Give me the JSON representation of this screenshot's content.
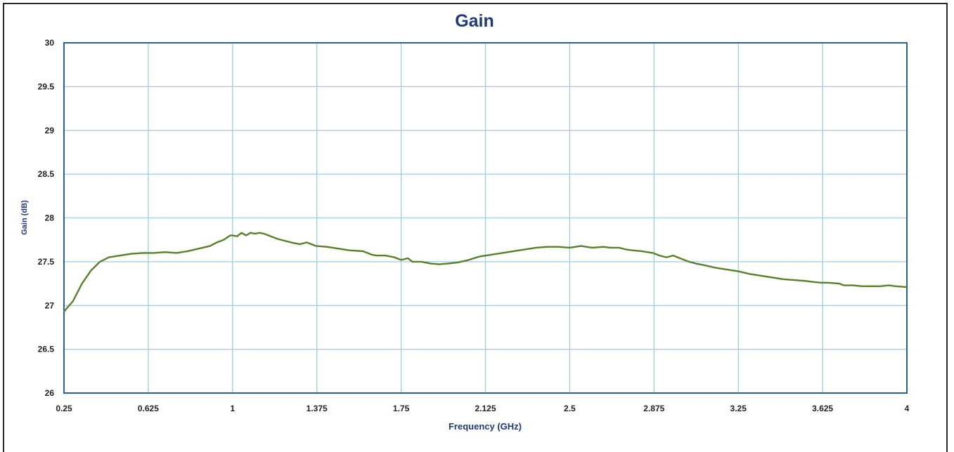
{
  "chart_data": {
    "type": "line",
    "title": "Gain",
    "xlabel": "Frequency (GHz)",
    "ylabel": "Gain (dB)",
    "xlim": [
      0.25,
      4
    ],
    "ylim": [
      26,
      30
    ],
    "grid": true,
    "colors": {
      "line": "#5a7f2a",
      "grid": "#9ecbe0",
      "plot_border": "#2b5f9a",
      "title": "#1f3a7a"
    },
    "x_ticks": [
      "0.25",
      "0.625",
      "1",
      "1.375",
      "1.75",
      "2.125",
      "2.5",
      "2.875",
      "3.25",
      "3.625",
      "4"
    ],
    "y_ticks": [
      "26",
      "26.5",
      "27",
      "27.5",
      "28",
      "28.5",
      "29",
      "29.5",
      "30"
    ],
    "series": [
      {
        "x": [
          0.25,
          0.29,
          0.33,
          0.37,
          0.41,
          0.45,
          0.5,
          0.55,
          0.6,
          0.65,
          0.7,
          0.75,
          0.8,
          0.85,
          0.9,
          0.93,
          0.96,
          0.99,
          1.0,
          1.02,
          1.04,
          1.06,
          1.08,
          1.1,
          1.12,
          1.14,
          1.2,
          1.26,
          1.3,
          1.33,
          1.37,
          1.42,
          1.47,
          1.52,
          1.58,
          1.62,
          1.64,
          1.68,
          1.72,
          1.75,
          1.78,
          1.8,
          1.84,
          1.88,
          1.92,
          1.96,
          2.0,
          2.05,
          2.1,
          2.15,
          2.2,
          2.25,
          2.3,
          2.35,
          2.4,
          2.45,
          2.5,
          2.55,
          2.6,
          2.65,
          2.68,
          2.72,
          2.75,
          2.78,
          2.82,
          2.87,
          2.9,
          2.93,
          2.96,
          2.98,
          3.0,
          3.03,
          3.06,
          3.1,
          3.15,
          3.2,
          3.25,
          3.3,
          3.35,
          3.4,
          3.45,
          3.5,
          3.55,
          3.58,
          3.62,
          3.65,
          3.7,
          3.72,
          3.76,
          3.8,
          3.84,
          3.88,
          3.92,
          3.95,
          4.0
        ],
        "y": [
          26.93,
          27.05,
          27.25,
          27.4,
          27.5,
          27.55,
          27.57,
          27.59,
          27.6,
          27.6,
          27.61,
          27.6,
          27.62,
          27.65,
          27.68,
          27.72,
          27.75,
          27.8,
          27.8,
          27.79,
          27.83,
          27.8,
          27.83,
          27.82,
          27.83,
          27.82,
          27.76,
          27.72,
          27.7,
          27.72,
          27.68,
          27.67,
          27.65,
          27.63,
          27.62,
          27.58,
          27.57,
          27.57,
          27.55,
          27.52,
          27.54,
          27.5,
          27.5,
          27.48,
          27.47,
          27.48,
          27.49,
          27.52,
          27.56,
          27.58,
          27.6,
          27.62,
          27.64,
          27.66,
          27.67,
          27.67,
          27.66,
          27.68,
          27.66,
          27.67,
          27.66,
          27.66,
          27.64,
          27.63,
          27.62,
          27.6,
          27.57,
          27.55,
          27.57,
          27.55,
          27.53,
          27.5,
          27.48,
          27.46,
          27.43,
          27.41,
          27.39,
          27.36,
          27.34,
          27.32,
          27.3,
          27.29,
          27.28,
          27.27,
          27.26,
          27.26,
          27.25,
          27.23,
          27.23,
          27.22,
          27.22,
          27.22,
          27.23,
          27.22,
          27.21
        ]
      }
    ]
  }
}
